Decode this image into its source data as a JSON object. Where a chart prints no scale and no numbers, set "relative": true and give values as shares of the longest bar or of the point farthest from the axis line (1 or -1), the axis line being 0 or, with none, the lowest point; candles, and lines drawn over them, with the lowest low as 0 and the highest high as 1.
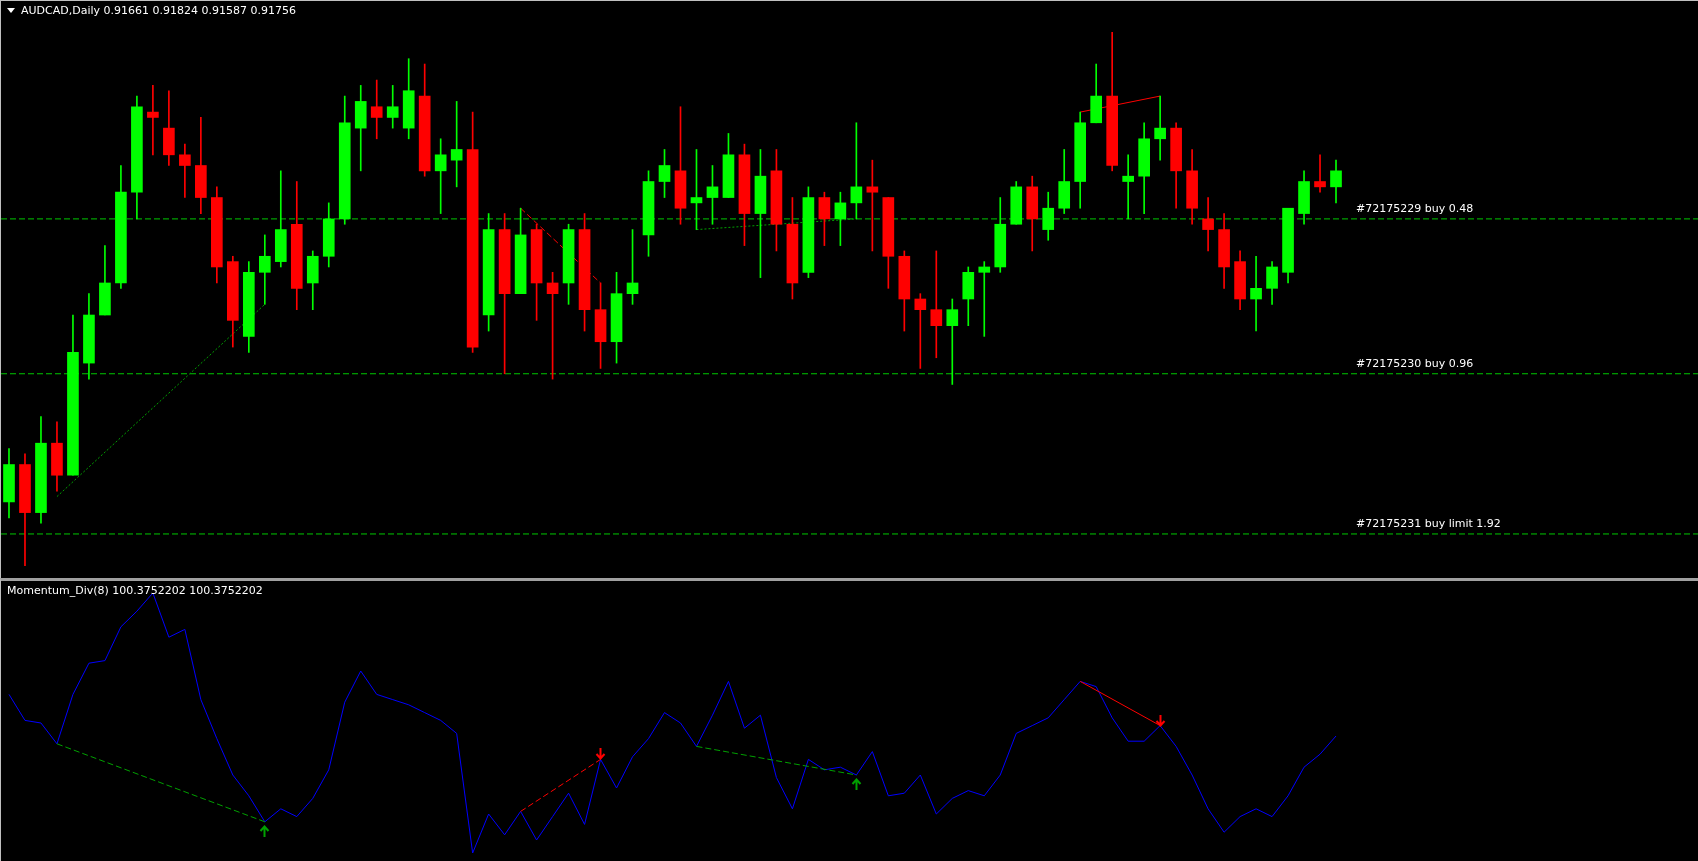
{
  "chart_data": [
    {
      "type": "candlestick",
      "title": "AUDCAD,Daily 0.91661 0.91824 0.91587 0.91756",
      "relative": true,
      "marker": "none",
      "categories": [
        null,
        null,
        null,
        null,
        null,
        null,
        null,
        null,
        null,
        null,
        null,
        null,
        null,
        null,
        null,
        null,
        null,
        null,
        null,
        null,
        null,
        null,
        null,
        null,
        null,
        null,
        null,
        null,
        null,
        null,
        null,
        null,
        null,
        null,
        null,
        null,
        null,
        null,
        null,
        null,
        null,
        null,
        null,
        null,
        null,
        null,
        null,
        null,
        null,
        null,
        null,
        null,
        null,
        null,
        null,
        null,
        null,
        null,
        null,
        null,
        null,
        null,
        null,
        null,
        null,
        null,
        null,
        null,
        null,
        null,
        null,
        null,
        null,
        null,
        null,
        null,
        null,
        null,
        null,
        null,
        null,
        null,
        null,
        null
      ],
      "ohlc": [
        [
          0.12,
          0.22,
          0.09,
          0.19
        ],
        [
          0.19,
          0.21,
          0,
          0.1
        ],
        [
          0.1,
          0.28,
          0.08,
          0.23
        ],
        [
          0.23,
          0.27,
          0.14,
          0.17
        ],
        [
          0.17,
          0.47,
          0.17,
          0.4
        ],
        [
          0.38,
          0.51,
          0.35,
          0.47
        ],
        [
          0.47,
          0.6,
          0.47,
          0.53
        ],
        [
          0.53,
          0.75,
          0.52,
          0.7
        ],
        [
          0.7,
          0.88,
          0.65,
          0.86
        ],
        [
          0.85,
          0.9,
          0.77,
          0.84
        ],
        [
          0.82,
          0.89,
          0.75,
          0.77
        ],
        [
          0.77,
          0.79,
          0.69,
          0.75
        ],
        [
          0.75,
          0.84,
          0.66,
          0.69
        ],
        [
          0.69,
          0.71,
          0.53,
          0.56
        ],
        [
          0.57,
          0.58,
          0.41,
          0.46
        ],
        [
          0.43,
          0.57,
          0.4,
          0.55
        ],
        [
          0.55,
          0.62,
          0.49,
          0.58
        ],
        [
          0.57,
          0.74,
          0.56,
          0.63
        ],
        [
          0.64,
          0.72,
          0.48,
          0.52
        ],
        [
          0.53,
          0.59,
          0.48,
          0.58
        ],
        [
          0.58,
          0.68,
          0.56,
          0.65
        ],
        [
          0.65,
          0.88,
          0.64,
          0.83
        ],
        [
          0.82,
          0.9,
          0.74,
          0.87
        ],
        [
          0.86,
          0.91,
          0.8,
          0.84
        ],
        [
          0.84,
          0.9,
          0.82,
          0.86
        ],
        [
          0.82,
          0.95,
          0.8,
          0.89
        ],
        [
          0.88,
          0.94,
          0.73,
          0.74
        ],
        [
          0.74,
          0.8,
          0.66,
          0.77
        ],
        [
          0.76,
          0.87,
          0.71,
          0.78
        ],
        [
          0.78,
          0.85,
          0.4,
          0.41
        ],
        [
          0.47,
          0.66,
          0.44,
          0.63
        ],
        [
          0.63,
          0.66,
          0.36,
          0.51
        ],
        [
          0.51,
          0.67,
          0.51,
          0.62
        ],
        [
          0.63,
          0.64,
          0.46,
          0.53
        ],
        [
          0.53,
          0.55,
          0.35,
          0.51
        ],
        [
          0.53,
          0.64,
          0.49,
          0.63
        ],
        [
          0.63,
          0.66,
          0.44,
          0.48
        ],
        [
          0.48,
          0.53,
          0.37,
          0.42
        ],
        [
          0.42,
          0.55,
          0.38,
          0.51
        ],
        [
          0.51,
          0.63,
          0.49,
          0.53
        ],
        [
          0.62,
          0.74,
          0.58,
          0.72
        ],
        [
          0.72,
          0.78,
          0.69,
          0.75
        ],
        [
          0.74,
          0.86,
          0.64,
          0.67
        ],
        [
          0.68,
          0.78,
          0.63,
          0.69
        ],
        [
          0.69,
          0.75,
          0.64,
          0.71
        ],
        [
          0.69,
          0.81,
          0.69,
          0.77
        ],
        [
          0.77,
          0.79,
          0.6,
          0.66
        ],
        [
          0.66,
          0.78,
          0.54,
          0.73
        ],
        [
          0.74,
          0.78,
          0.59,
          0.64
        ],
        [
          0.64,
          0.69,
          0.5,
          0.53
        ],
        [
          0.55,
          0.71,
          0.54,
          0.69
        ],
        [
          0.69,
          0.7,
          0.6,
          0.65
        ],
        [
          0.65,
          0.7,
          0.6,
          0.68
        ],
        [
          0.68,
          0.83,
          0.65,
          0.71
        ],
        [
          0.71,
          0.76,
          0.59,
          0.7
        ],
        [
          0.69,
          0.69,
          0.52,
          0.58
        ],
        [
          0.58,
          0.59,
          0.44,
          0.5
        ],
        [
          0.5,
          0.51,
          0.37,
          0.48
        ],
        [
          0.48,
          0.59,
          0.39,
          0.45
        ],
        [
          0.45,
          0.5,
          0.34,
          0.48
        ],
        [
          0.5,
          0.56,
          0.45,
          0.55
        ],
        [
          0.55,
          0.57,
          0.43,
          0.56
        ],
        [
          0.56,
          0.69,
          0.55,
          0.64
        ],
        [
          0.64,
          0.72,
          0.64,
          0.71
        ],
        [
          0.71,
          0.73,
          0.59,
          0.65
        ],
        [
          0.63,
          0.7,
          0.61,
          0.67
        ],
        [
          0.67,
          0.78,
          0.66,
          0.72
        ],
        [
          0.72,
          0.85,
          0.67,
          0.83
        ],
        [
          0.83,
          0.94,
          0.83,
          0.88
        ],
        [
          0.88,
          1,
          0.74,
          0.75
        ],
        [
          0.72,
          0.77,
          0.65,
          0.73
        ],
        [
          0.73,
          0.83,
          0.66,
          0.8
        ],
        [
          0.8,
          0.88,
          0.76,
          0.82
        ],
        [
          0.82,
          0.83,
          0.67,
          0.74
        ],
        [
          0.74,
          0.78,
          0.64,
          0.67
        ],
        [
          0.65,
          0.69,
          0.59,
          0.63
        ],
        [
          0.63,
          0.66,
          0.52,
          0.56
        ],
        [
          0.57,
          0.59,
          0.48,
          0.5
        ],
        [
          0.5,
          0.58,
          0.44,
          0.52
        ],
        [
          0.52,
          0.57,
          0.49,
          0.56
        ],
        [
          0.55,
          0.67,
          0.53,
          0.67
        ],
        [
          0.66,
          0.74,
          0.64,
          0.72
        ],
        [
          0.72,
          0.77,
          0.7,
          0.71
        ],
        [
          0.71,
          0.76,
          0.68,
          0.74
        ]
      ],
      "colors": [
        "#00ff00",
        "#ff0000",
        "#00ff00",
        "#ff0000",
        "#00ff00",
        "#00ff00",
        "#00ff00",
        "#00ff00",
        "#00ff00",
        "#ff0000",
        "#ff0000",
        "#ff0000",
        "#ff0000",
        "#ff0000",
        "#ff0000",
        "#00ff00",
        "#00ff00",
        "#00ff00",
        "#ff0000",
        "#00ff00",
        "#00ff00",
        "#00ff00",
        "#00ff00",
        "#ff0000",
        "#00ff00",
        "#00ff00",
        "#ff0000",
        "#00ff00",
        "#00ff00",
        "#ff0000",
        "#00ff00",
        "#ff0000",
        "#00ff00",
        "#ff0000",
        "#ff0000",
        "#00ff00",
        "#ff0000",
        "#ff0000",
        "#00ff00",
        "#00ff00",
        "#00ff00",
        "#00ff00",
        "#ff0000",
        "#00ff00",
        "#00ff00",
        "#00ff00",
        "#ff0000",
        "#00ff00",
        "#ff0000",
        "#ff0000",
        "#00ff00",
        "#ff0000",
        "#00ff00",
        "#00ff00",
        "#ff0000",
        "#ff0000",
        "#ff0000",
        "#ff0000",
        "#ff0000",
        "#00ff00",
        "#00ff00",
        "#00ff00",
        "#00ff00",
        "#00ff00",
        "#ff0000",
        "#00ff00",
        "#00ff00",
        "#00ff00",
        "#00ff00",
        "#ff0000",
        "#00ff00",
        "#00ff00",
        "#00ff00",
        "#ff0000",
        "#ff0000",
        "#ff0000",
        "#ff0000",
        "#ff0000",
        "#00ff00",
        "#00ff00",
        "#00ff00",
        "#00ff00",
        "#ff0000",
        "#00ff00"
      ],
      "ref_lines": [
        {
          "axis": "y",
          "value": 0.65,
          "label": "#72175229 buy 0.48",
          "color": "#00c800",
          "line_style": "dashed"
        },
        {
          "axis": "y",
          "value": 0.36,
          "label": "#72175230 buy 0.96",
          "color": "#00c800",
          "line_style": "dashed"
        },
        {
          "axis": "y",
          "value": 0.06,
          "label": "#72175231 buy limit 1.92",
          "color": "#00c800",
          "line_style": "dashed"
        }
      ],
      "series": [
        {
          "type": "line",
          "color": "#00a000",
          "line_style": "dotted",
          "values": [
            null,
            null,
            null,
            0.13,
            null,
            null,
            null,
            null,
            null,
            null,
            null,
            null,
            null,
            null,
            null,
            null,
            0.49,
            null,
            null,
            null,
            null,
            null,
            null,
            null,
            null,
            null,
            null,
            null,
            null,
            null,
            null,
            null,
            null,
            null,
            null,
            null,
            null,
            null,
            null,
            null,
            null,
            null,
            null,
            null,
            null,
            null,
            null,
            null,
            null,
            null,
            null,
            null,
            null,
            null,
            null,
            null,
            null,
            null,
            null,
            null,
            null,
            null,
            null,
            null,
            null,
            null,
            null,
            null,
            null,
            null,
            null,
            null,
            null,
            null,
            null,
            null,
            null,
            null,
            null,
            null,
            null,
            null,
            null,
            null
          ]
        },
        {
          "type": "line",
          "color": "#ff0000",
          "line_style": "dashed",
          "values": [
            null,
            null,
            null,
            null,
            null,
            null,
            null,
            null,
            null,
            null,
            null,
            null,
            null,
            null,
            null,
            null,
            null,
            null,
            null,
            null,
            null,
            null,
            null,
            null,
            null,
            null,
            null,
            null,
            null,
            null,
            null,
            null,
            0.67,
            null,
            null,
            null,
            null,
            0.53,
            null,
            null,
            null,
            null,
            null,
            null,
            null,
            null,
            null,
            null,
            null,
            null,
            null,
            null,
            null,
            null,
            null,
            null,
            null,
            null,
            null,
            null,
            null,
            null,
            null,
            null,
            null,
            null,
            null,
            null,
            null,
            null,
            null,
            null,
            null,
            null,
            null,
            null,
            null,
            null,
            null,
            null,
            null,
            null,
            null,
            null
          ]
        },
        {
          "type": "line",
          "color": "#00a000",
          "line_style": "dotted",
          "values": [
            null,
            null,
            null,
            null,
            null,
            null,
            null,
            null,
            null,
            null,
            null,
            null,
            null,
            null,
            null,
            null,
            null,
            null,
            null,
            null,
            null,
            null,
            null,
            null,
            null,
            null,
            null,
            null,
            null,
            null,
            null,
            null,
            null,
            null,
            null,
            null,
            null,
            null,
            null,
            null,
            null,
            null,
            null,
            0.63,
            null,
            null,
            null,
            null,
            null,
            null,
            null,
            null,
            null,
            0.65,
            null,
            null,
            null,
            null,
            null,
            null,
            null,
            null,
            null,
            null,
            null,
            null,
            null,
            null,
            null,
            null,
            null,
            null,
            null,
            null,
            null,
            null,
            null,
            null,
            null,
            null,
            null,
            null,
            null,
            null
          ]
        },
        {
          "type": "line",
          "color": "#ff0000",
          "line_style": "solid",
          "values": [
            null,
            null,
            null,
            null,
            null,
            null,
            null,
            null,
            null,
            null,
            null,
            null,
            null,
            null,
            null,
            null,
            null,
            null,
            null,
            null,
            null,
            null,
            null,
            null,
            null,
            null,
            null,
            null,
            null,
            null,
            null,
            null,
            null,
            null,
            null,
            null,
            null,
            null,
            null,
            null,
            null,
            null,
            null,
            null,
            null,
            null,
            null,
            null,
            null,
            null,
            null,
            null,
            null,
            null,
            null,
            null,
            null,
            null,
            null,
            null,
            null,
            null,
            null,
            null,
            null,
            null,
            null,
            0.85,
            null,
            null,
            null,
            null,
            0.88,
            null,
            null,
            null,
            null,
            null,
            null,
            null,
            null,
            null,
            null,
            null
          ]
        }
      ]
    },
    {
      "type": "line",
      "title": "Momentum_Div(8) 100.3752202 100.3752202",
      "relative": true,
      "marker": "none",
      "categories": [
        null,
        null,
        null,
        null,
        null,
        null,
        null,
        null,
        null,
        null,
        null,
        null,
        null,
        null,
        null,
        null,
        null,
        null,
        null,
        null,
        null,
        null,
        null,
        null,
        null,
        null,
        null,
        null,
        null,
        null,
        null,
        null,
        null,
        null,
        null,
        null,
        null,
        null,
        null,
        null,
        null,
        null,
        null,
        null,
        null,
        null,
        null,
        null,
        null,
        null,
        null,
        null,
        null,
        null,
        null,
        null,
        null,
        null,
        null,
        null,
        null,
        null,
        null,
        null,
        null,
        null,
        null,
        null,
        null,
        null,
        null,
        null,
        null,
        null,
        null,
        null,
        null,
        null,
        null,
        null,
        null,
        null,
        null,
        null
      ],
      "series": [
        {
          "color": "#0000ff",
          "values": [
            0.61,
            0.51,
            0.5,
            0.42,
            0.61,
            0.73,
            0.74,
            0.87,
            0.93,
            1,
            0.83,
            0.86,
            0.59,
            0.44,
            0.3,
            0.22,
            0.12,
            0.17,
            0.14,
            0.21,
            0.32,
            0.58,
            0.7,
            0.61,
            0.59,
            0.57,
            0.54,
            0.51,
            0.46,
            0,
            0.15,
            0.07,
            0.16,
            0.05,
            0.14,
            0.23,
            0.11,
            0.36,
            0.25,
            0.37,
            0.44,
            0.54,
            0.5,
            0.41,
            0.53,
            0.66,
            0.48,
            0.53,
            0.29,
            0.17,
            0.36,
            0.32,
            0.33,
            0.3,
            0.39,
            0.22,
            0.23,
            0.3,
            0.15,
            0.21,
            0.24,
            0.22,
            0.3,
            0.46,
            0.49,
            0.52,
            0.59,
            0.66,
            0.64,
            0.52,
            0.43,
            0.43,
            0.49,
            0.41,
            0.3,
            0.17,
            0.08,
            0.14,
            0.17,
            0.14,
            0.22,
            0.33,
            0.38,
            0.45
          ]
        },
        {
          "color": "#00a000",
          "line_style": "dashed",
          "values": [
            null,
            null,
            null,
            0.42,
            null,
            null,
            null,
            null,
            null,
            null,
            null,
            null,
            null,
            null,
            null,
            null,
            0.12,
            null,
            null,
            null,
            null,
            null,
            null,
            null,
            null,
            null,
            null,
            null,
            null,
            null,
            null,
            null,
            null,
            null,
            null,
            null,
            null,
            null,
            null,
            null,
            null,
            null,
            null,
            null,
            null,
            null,
            null,
            null,
            null,
            null,
            null,
            null,
            null,
            null,
            null,
            null,
            null,
            null,
            null,
            null,
            null,
            null,
            null,
            null,
            null,
            null,
            null,
            null,
            null,
            null,
            null,
            null,
            null,
            null,
            null,
            null,
            null,
            null,
            null,
            null,
            null,
            null,
            null,
            null
          ]
        },
        {
          "color": "#ff0000",
          "line_style": "dashed",
          "values": [
            null,
            null,
            null,
            null,
            null,
            null,
            null,
            null,
            null,
            null,
            null,
            null,
            null,
            null,
            null,
            null,
            null,
            null,
            null,
            null,
            null,
            null,
            null,
            null,
            null,
            null,
            null,
            null,
            null,
            null,
            null,
            null,
            0.16,
            null,
            null,
            null,
            null,
            0.36,
            null,
            null,
            null,
            null,
            null,
            null,
            null,
            null,
            null,
            null,
            null,
            null,
            null,
            null,
            null,
            null,
            null,
            null,
            null,
            null,
            null,
            null,
            null,
            null,
            null,
            null,
            null,
            null,
            null,
            null,
            null,
            null,
            null,
            null,
            null,
            null,
            null,
            null,
            null,
            null,
            null,
            null,
            null,
            null,
            null,
            null
          ]
        },
        {
          "color": "#00a000",
          "line_style": "dashed",
          "values": [
            null,
            null,
            null,
            null,
            null,
            null,
            null,
            null,
            null,
            null,
            null,
            null,
            null,
            null,
            null,
            null,
            null,
            null,
            null,
            null,
            null,
            null,
            null,
            null,
            null,
            null,
            null,
            null,
            null,
            null,
            null,
            null,
            null,
            null,
            null,
            null,
            null,
            null,
            null,
            null,
            null,
            null,
            null,
            0.41,
            null,
            null,
            null,
            null,
            null,
            null,
            null,
            null,
            null,
            0.3,
            null,
            null,
            null,
            null,
            null,
            null,
            null,
            null,
            null,
            null,
            null,
            null,
            null,
            null,
            null,
            null,
            null,
            null,
            null,
            null,
            null,
            null,
            null,
            null,
            null,
            null,
            null,
            null,
            null,
            null
          ]
        },
        {
          "color": "#ff0000",
          "line_style": "solid",
          "values": [
            null,
            null,
            null,
            null,
            null,
            null,
            null,
            null,
            null,
            null,
            null,
            null,
            null,
            null,
            null,
            null,
            null,
            null,
            null,
            null,
            null,
            null,
            null,
            null,
            null,
            null,
            null,
            null,
            null,
            null,
            null,
            null,
            null,
            null,
            null,
            null,
            null,
            null,
            null,
            null,
            null,
            null,
            null,
            null,
            null,
            null,
            null,
            null,
            null,
            null,
            null,
            null,
            null,
            null,
            null,
            null,
            null,
            null,
            null,
            null,
            null,
            null,
            null,
            null,
            null,
            null,
            null,
            0.66,
            null,
            null,
            null,
            null,
            0.49,
            null,
            null,
            null,
            null,
            null,
            null,
            null,
            null,
            null,
            null,
            null
          ]
        }
      ]
    }
  ]
}
